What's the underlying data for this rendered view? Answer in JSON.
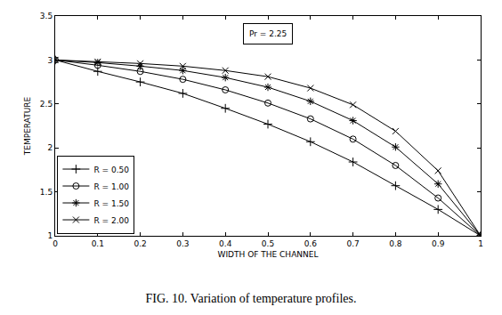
{
  "chart_data": {
    "type": "line",
    "title": "FIG. 10. Variation of temperature profiles.",
    "x_label": "WIDTH OF THE CHANNEL",
    "y_label": "TEMPERATURE",
    "annotations": [
      {
        "text": "Pr = 2.25",
        "x": 0.5,
        "y": 3.3
      }
    ],
    "x": [
      0,
      0.1,
      0.2,
      0.3,
      0.4,
      0.5,
      0.6,
      0.7,
      0.8,
      0.9,
      1
    ],
    "series": [
      {
        "name": "R = 0.50",
        "color": "#000000",
        "marker": "cross",
        "values": [
          3,
          2.87,
          2.75,
          2.62,
          2.45,
          2.27,
          2.07,
          1.84,
          1.57,
          1.3,
          1.0
        ]
      },
      {
        "name": "R = 1.00",
        "color": "#000000",
        "marker": "circle",
        "values": [
          3,
          2.94,
          2.87,
          2.78,
          2.66,
          2.51,
          2.33,
          2.1,
          1.8,
          1.43,
          1.0
        ]
      },
      {
        "name": "R = 1.50",
        "color": "#000000",
        "marker": "asterisk",
        "values": [
          3,
          2.97,
          2.93,
          2.88,
          2.8,
          2.69,
          2.53,
          2.31,
          2.01,
          1.59,
          1.0
        ]
      },
      {
        "name": "R = 2.00",
        "color": "#000000",
        "marker": "x",
        "values": [
          3,
          2.98,
          2.96,
          2.93,
          2.88,
          2.81,
          2.68,
          2.49,
          2.19,
          1.74,
          1.0
        ]
      }
    ],
    "xlim": [
      0,
      1
    ],
    "xticks": [
      0,
      0.1,
      0.2,
      0.3,
      0.4,
      0.5,
      0.6,
      0.7,
      0.8,
      0.9,
      1
    ],
    "ylim": [
      1,
      3.5
    ],
    "yticks": [
      1,
      1.5,
      2,
      2.5,
      3,
      3.5
    ],
    "grid": false,
    "legend": "lower left"
  }
}
